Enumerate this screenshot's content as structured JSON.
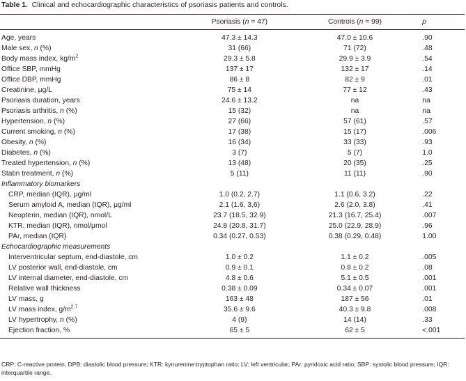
{
  "caption": {
    "label": "Table 1.",
    "text": "Clinical and echocardiographic characteristics of psoriasis patients and controls."
  },
  "columns": {
    "psoriasis": "Psoriasis (",
    "psoriasis_n": "n",
    "psoriasis_count": " = 47)",
    "controls": "Controls (",
    "controls_n": "n",
    "controls_count": " = 99)",
    "p": "p"
  },
  "rows": {
    "age": {
      "label": "Age, years",
      "psoriasis": "47.3 ± 14.3",
      "controls": "47.0 ± 10.6",
      "p": ".90"
    },
    "male": {
      "label": "Male sex, ",
      "unit": "n",
      "suffix": " (%)",
      "psoriasis": "31 (66)",
      "controls": "71 (72)",
      "p": ".48"
    },
    "bmi": {
      "label": "Body mass index, kg/m",
      "sup": "2",
      "psoriasis": "29.3 ± 5.8",
      "controls": "29.9 ± 3.9",
      "p": ".54"
    },
    "sbp": {
      "label": "Office SBP, mmHg",
      "psoriasis": "137 ± 17",
      "controls": "132 ± 17",
      "p": ".14"
    },
    "dbp": {
      "label": "Office DBP, mmHg",
      "psoriasis": "86 ± 8",
      "controls": "82 ± 9",
      "p": ".01"
    },
    "creat": {
      "label": "Creatinine, μg/L",
      "psoriasis": "75 ± 14",
      "controls": "77 ± 12",
      "p": ".43"
    },
    "pdur": {
      "label": "Psoriasis duration, years",
      "psoriasis": "24.6 ± 13.2",
      "controls": "na",
      "p": "na"
    },
    "parth": {
      "label": "Psoriasis arthritis, ",
      "unit": "n",
      "suffix": " (%)",
      "psoriasis": "15 (32)",
      "controls": "na",
      "p": "na"
    },
    "htn": {
      "label": "Hypertension, ",
      "unit": "n",
      "suffix": " (%)",
      "psoriasis": "27 (66)",
      "controls": "57 (61)",
      "p": ".57"
    },
    "smoke": {
      "label": "Current smoking, ",
      "unit": "n",
      "suffix": " (%)",
      "psoriasis": "17 (38)",
      "controls": "15 (17)",
      "p": ".006"
    },
    "obes": {
      "label": "Obesity, ",
      "unit": "n",
      "suffix": " (%)",
      "psoriasis": "16 (34)",
      "controls": "33 (33)",
      "p": ".93"
    },
    "diab": {
      "label": "Diabetes, ",
      "unit": "n",
      "suffix": " (%)",
      "psoriasis": "3 (7)",
      "controls": "5 (7)",
      "p": "1.0"
    },
    "thtn": {
      "label": "Treated hypertension, ",
      "unit": "n",
      "suffix": " (%)",
      "psoriasis": "13 (48)",
      "controls": "20 (35)",
      "p": ".25"
    },
    "statin": {
      "label": "Statin treatment, ",
      "unit": "n",
      "suffix": " (%)",
      "psoriasis": "5 (11)",
      "controls": "11 (11)",
      "p": ".90"
    },
    "inflam_head": "Inflammatory biomarkers",
    "crp": {
      "label": "CRP, median (IQR), μg/ml",
      "psoriasis": "1.0 (0.2, 2.7)",
      "controls": "1.1 (0.6, 3.2)",
      "p": ".22"
    },
    "saa": {
      "label": "Serum amyloid A, median (IQR), μg/ml",
      "psoriasis": "2.1 (1.6, 3,6)",
      "controls": "2.6 (2.0, 3.8)",
      "p": ".41"
    },
    "neop": {
      "label": "Neopterin, median (IQR), nmol/L",
      "psoriasis": "23.7 (18.5, 32.9)",
      "controls": "21.3 (16.7, 25.4)",
      "p": ".007"
    },
    "ktr": {
      "label": "KTR, median (IQR), nmol/μmol",
      "psoriasis": "24.8 (20.8, 31.7)",
      "controls": "25.0 (22.9, 28.9)",
      "p": ".96"
    },
    "par": {
      "label": "PAr, median (IQR)",
      "psoriasis": "0.34 (0.27, 0.53)",
      "controls": "0.38 (0.29, 0.48)",
      "p": "1.00"
    },
    "echo_head": "Echocardiographic measurements",
    "ivs": {
      "label": "Interventricular septum, end-diastole, cm",
      "psoriasis": "1.0 ± 0.2",
      "controls": "1.1 ± 0.2",
      "p": ".005"
    },
    "lvpw": {
      "label": "LV posterior wall, end-diastole, cm",
      "psoriasis": "0.9 ± 0.1",
      "controls": "0.8 ± 0.2",
      "p": ".08"
    },
    "lvid": {
      "label": "LV internal diameter, end-diastole, cm",
      "psoriasis": "4.8 ± 0.6",
      "controls": "5.1 ± 0.5",
      "p": ".001"
    },
    "rwt": {
      "label": "Relative wall thickness",
      "psoriasis": "0.38 ± 0.09",
      "controls": "0.34 ± 0.07",
      "p": ".001"
    },
    "lvm": {
      "label": "LV mass, g",
      "psoriasis": "163 ± 48",
      "controls": "187 ± 56",
      "p": ".01"
    },
    "lvmi": {
      "label": "LV mass index, g/m",
      "sup": "2.7",
      "psoriasis": "35.6 ± 9.6",
      "controls": "40.3 ± 9.8",
      "p": ".008"
    },
    "lvh": {
      "label": "LV hypertrophy, ",
      "unit": "n",
      "suffix": " (%)",
      "psoriasis": "4 (9)",
      "controls": "14 (14)",
      "p": ".33"
    },
    "ef": {
      "label": "Ejection fraction, %",
      "psoriasis": "65 ± 5",
      "controls": "62 ± 5",
      "p": "<.001"
    }
  },
  "footnote": "CRP: C-reactive protein; DPB: diastolic blood pressure; KTR: kynurenine:tryptophan ratio; LV: left ventricular; PAr: pyridoxic acid ratio; SBP: systolic blood pressure; IQR: interquartile range."
}
